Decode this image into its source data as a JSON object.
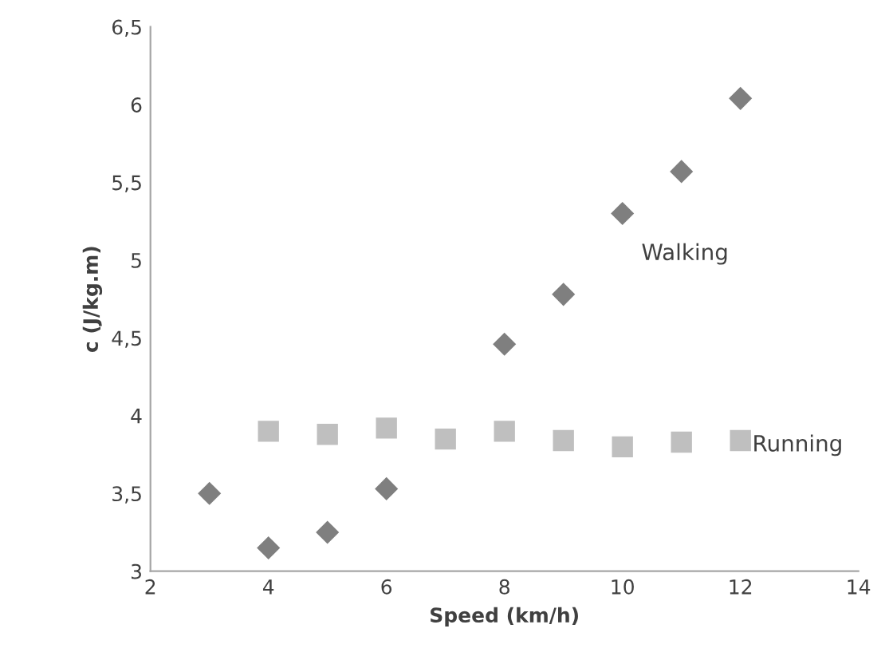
{
  "chart_data": {
    "type": "scatter",
    "xlabel": "Speed (km/h)",
    "ylabel": "c (J/kg.m)",
    "series": [
      {
        "name": "Walking",
        "color": "#7f7f7f",
        "marker": "diamond",
        "x": [
          3,
          4,
          5,
          6,
          8,
          9,
          10,
          11,
          12
        ],
        "values": [
          3.5,
          3.15,
          3.25,
          3.53,
          4.46,
          4.78,
          5.3,
          5.57,
          6.04
        ]
      },
      {
        "name": "Running",
        "color": "#bfbfbf",
        "marker": "square",
        "x": [
          4,
          5,
          6,
          7,
          8,
          9,
          10,
          11,
          12
        ],
        "values": [
          3.9,
          3.88,
          3.92,
          3.85,
          3.9,
          3.84,
          3.8,
          3.83,
          3.84
        ]
      }
    ],
    "xlim": [
      2,
      14
    ],
    "xticks": [
      2,
      4,
      6,
      8,
      10,
      12,
      14
    ],
    "ylim": [
      3,
      6.5
    ],
    "yticks": [
      3,
      {
        "value": 3.5,
        "label": "3,5"
      },
      4,
      {
        "value": 4.5,
        "label": "4,5"
      },
      5,
      {
        "value": 5.5,
        "label": "5,5"
      },
      6,
      {
        "value": 6.5,
        "label": "6,5"
      }
    ],
    "grid": false,
    "legend": false
  }
}
